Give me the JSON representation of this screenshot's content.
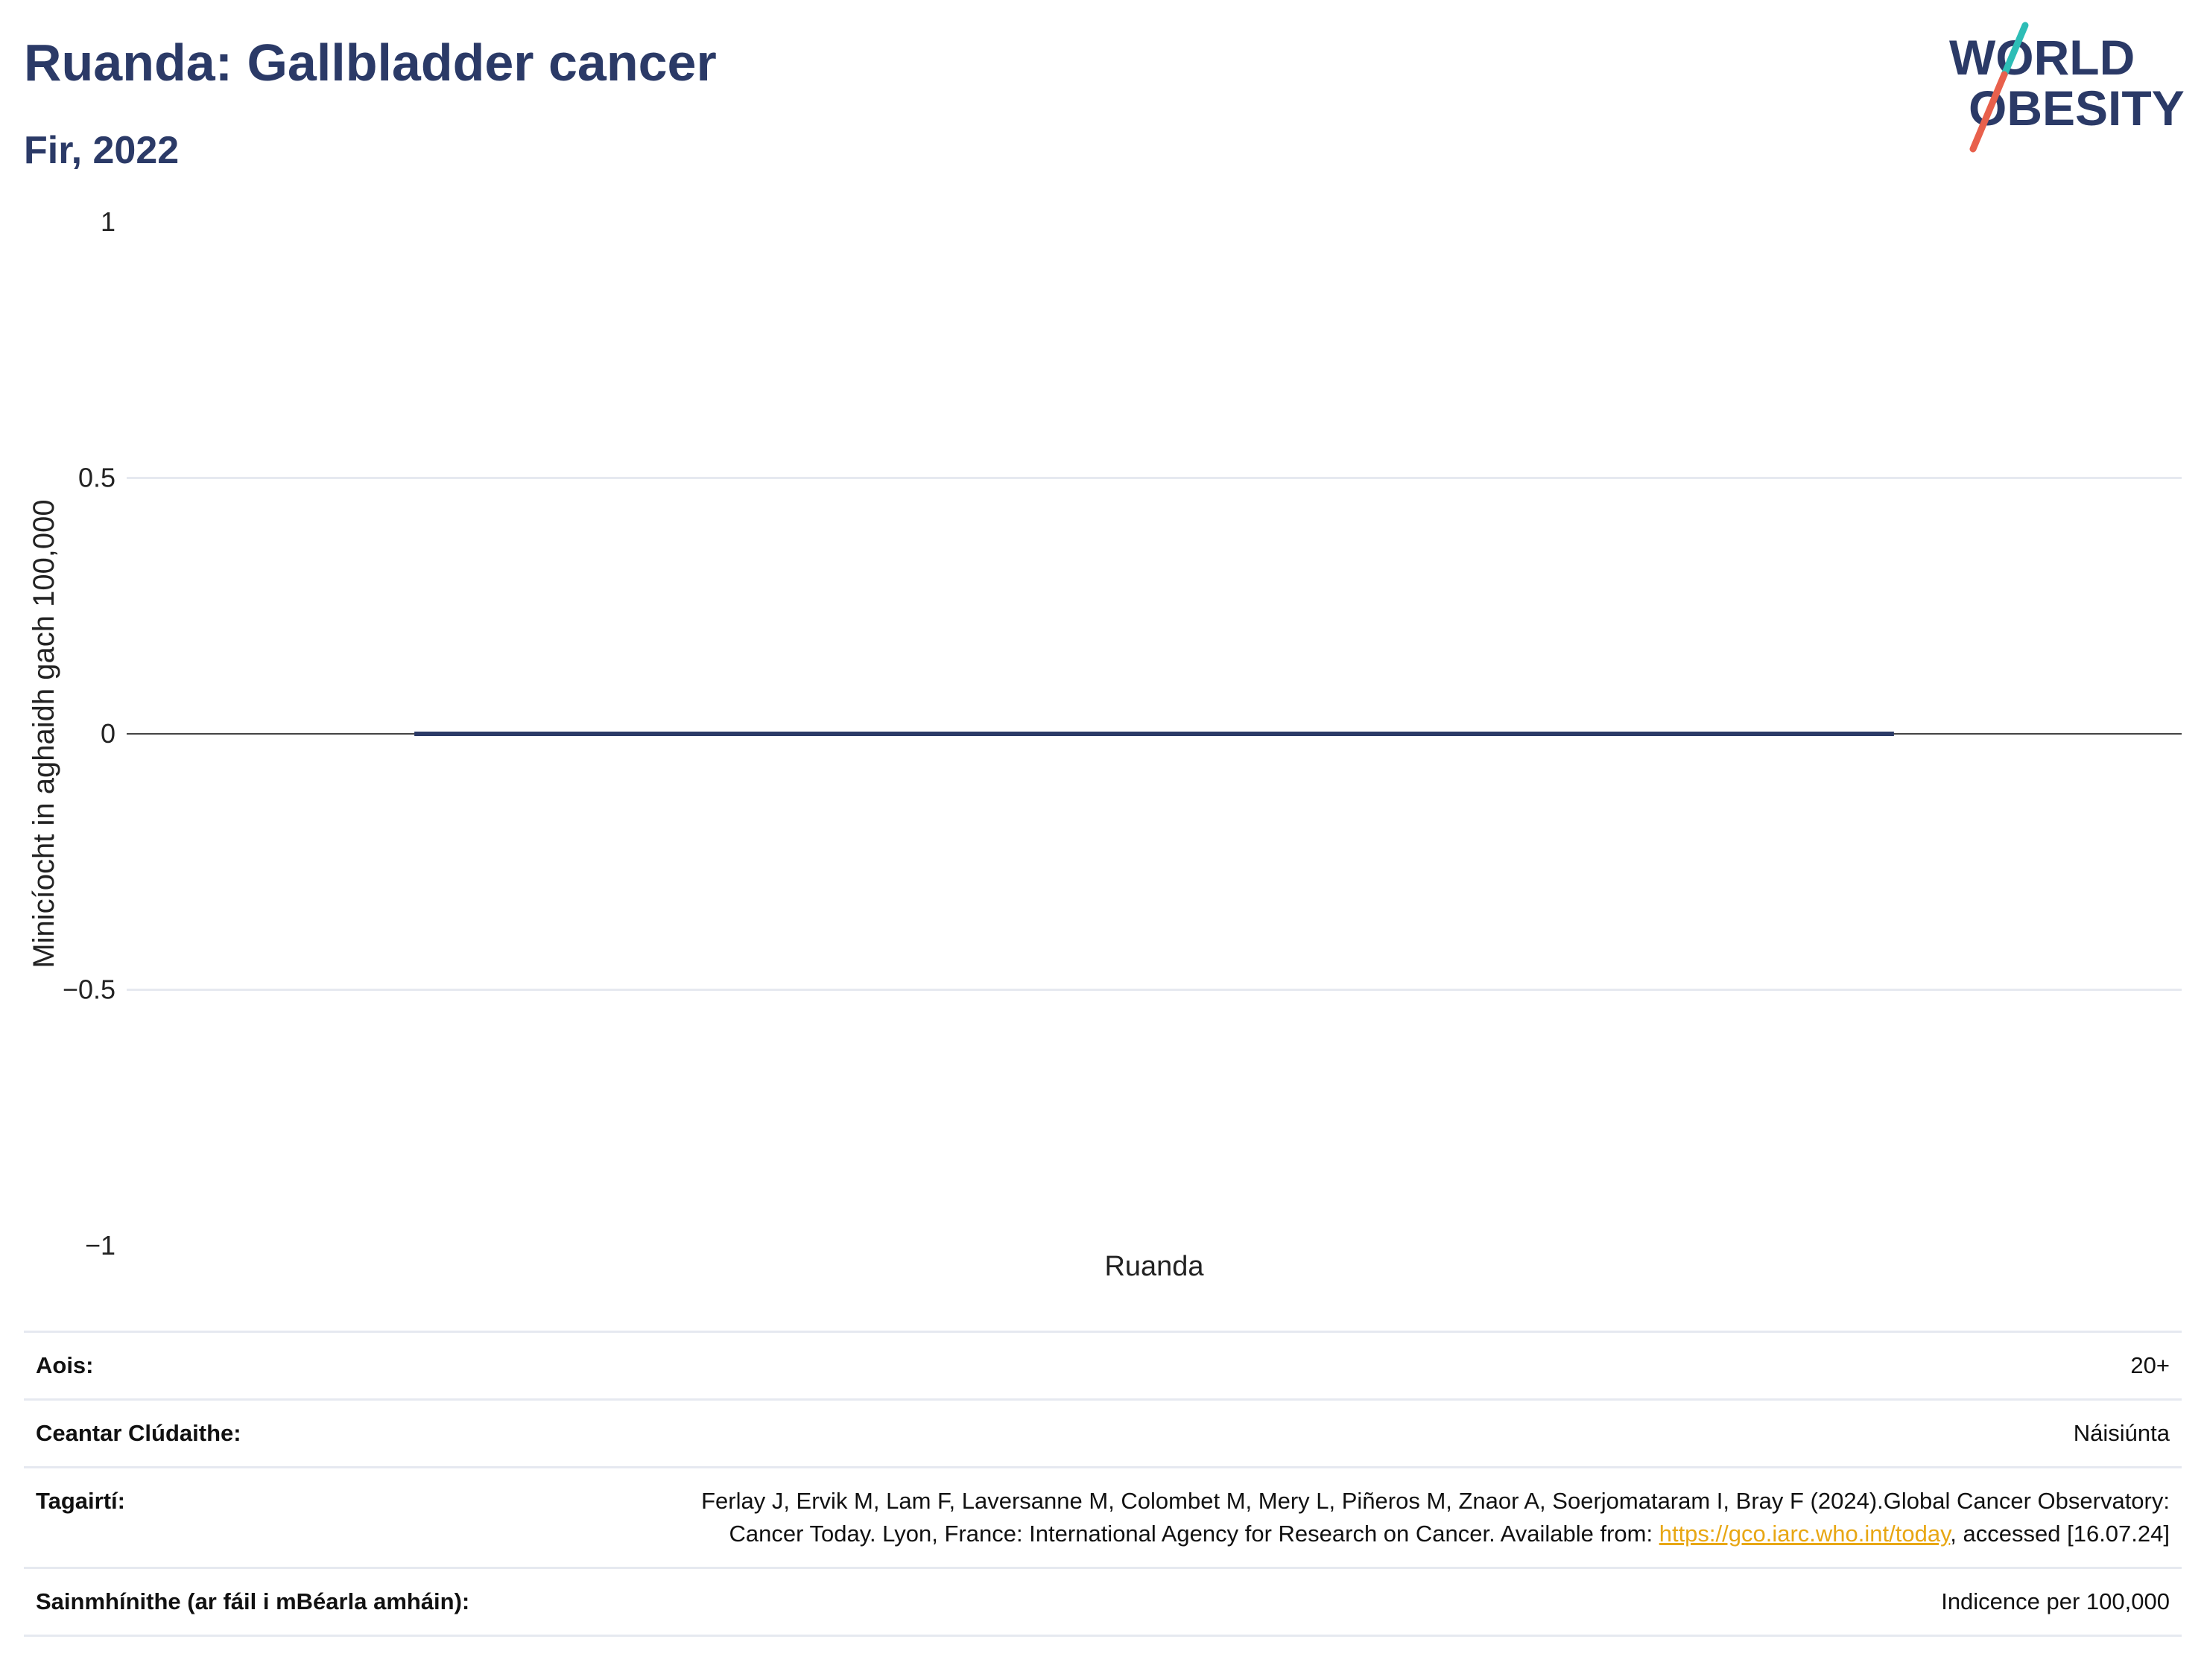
{
  "header": {
    "title": "Ruanda: Gallbladder cancer",
    "subtitle": "Fir, 2022"
  },
  "logo": {
    "line1": "WORLD",
    "line2": "OBESITY",
    "accent_colors": [
      "#2dbdb6",
      "#e8604c"
    ],
    "text_color": "#2b3a67"
  },
  "chart_data": {
    "type": "bar",
    "categories": [
      "Ruanda"
    ],
    "series": [
      {
        "values": [
          0
        ]
      }
    ],
    "ylabel": "Minicíocht in aghaidh gach 100,000",
    "xlabel": "",
    "ylim": [
      -1,
      1
    ],
    "yticks": [
      1,
      0.5,
      0,
      -0.5,
      -1
    ],
    "ytick_labels": [
      "1",
      "0.5",
      "0",
      "−0.5",
      "−1"
    ],
    "bar_color": "#2b3a67",
    "grid": true
  },
  "meta": {
    "rows": [
      {
        "label": "Aois:",
        "value": "20+"
      },
      {
        "label": "Ceantar Clúdaithe:",
        "value": "Náisiúnta"
      },
      {
        "label": "Tagairtí:",
        "value_before": "Ferlay J, Ervik M, Lam F, Laversanne M, Colombet M, Mery L, Piñeros M, Znaor A, Soerjomataram I, Bray F (2024).Global Cancer Observatory: Cancer Today. Lyon, France: International Agency for Research on Cancer. Available from: ",
        "link": "https://gco.iarc.who.int/today",
        "value_after": ", accessed [16.07.24]"
      },
      {
        "label": "Sainmhínithe (ar fáil i mBéarla amháin):",
        "value": "Indicence per 100,000"
      }
    ]
  }
}
